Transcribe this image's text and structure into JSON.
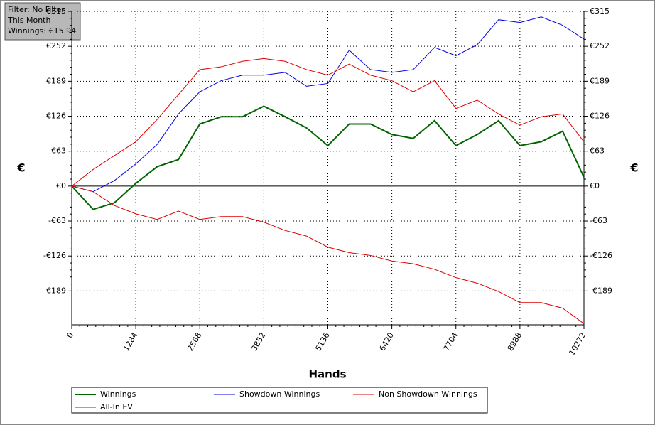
{
  "filter_box": [
    "Filter: No Filter",
    "This Month",
    "Winnings: €15.94"
  ],
  "chart_data": {
    "type": "line",
    "xlabel": "Hands",
    "ylabel": "€",
    "y2label": "€",
    "x": [
      0,
      428,
      856,
      1284,
      1712,
      2140,
      2568,
      2996,
      3424,
      3852,
      4280,
      4708,
      5136,
      5564,
      5992,
      6420,
      6848,
      7276,
      7704,
      8132,
      8560,
      8988,
      9416,
      9844,
      10272
    ],
    "xlim": [
      0,
      10272
    ],
    "xticks": [
      0,
      1284,
      2568,
      3852,
      5136,
      6420,
      7704,
      8988,
      10272
    ],
    "ylim": [
      -250,
      315
    ],
    "yticks": [
      {
        "value": -189,
        "label": "-€189"
      },
      {
        "value": -126,
        "label": "-€126"
      },
      {
        "value": -63,
        "label": "-€63"
      },
      {
        "value": 0,
        "label": "€0"
      },
      {
        "value": 63,
        "label": "€63"
      },
      {
        "value": 126,
        "label": "€126"
      },
      {
        "value": 189,
        "label": "€189"
      },
      {
        "value": 252,
        "label": "€252"
      },
      {
        "value": 315,
        "label": "€315"
      }
    ],
    "grid": true,
    "series": [
      {
        "name": "Winnings",
        "color": "#006400",
        "width": 2,
        "values": [
          0,
          -42,
          -30,
          5,
          35,
          48,
          112,
          125,
          125,
          144,
          125,
          105,
          73,
          112,
          112,
          93,
          86,
          118,
          73,
          93,
          118,
          73,
          80,
          99,
          15.94
        ]
      },
      {
        "name": "Showdown Winnings",
        "color": "#0000dd",
        "width": 1,
        "values": [
          0,
          -10,
          10,
          40,
          75,
          130,
          170,
          190,
          200,
          200,
          205,
          180,
          185,
          245,
          210,
          205,
          210,
          250,
          235,
          255,
          300,
          295,
          305,
          290,
          265
        ]
      },
      {
        "name": "Non Showdown Winnings",
        "color": "#dd0000",
        "width": 1,
        "values": [
          0,
          30,
          55,
          80,
          120,
          165,
          210,
          215,
          225,
          230,
          225,
          210,
          200,
          220,
          200,
          190,
          170,
          190,
          140,
          155,
          130,
          110,
          125,
          130,
          80
        ]
      },
      {
        "name": "All-In EV",
        "color": "#dd0000",
        "width": 1,
        "values": [
          0,
          -10,
          -35,
          -50,
          -60,
          -45,
          -60,
          -55,
          -55,
          -65,
          -80,
          -90,
          -110,
          -120,
          -125,
          -135,
          -140,
          -150,
          -165,
          -175,
          -190,
          -210,
          -210,
          -220,
          -248
        ]
      }
    ]
  }
}
